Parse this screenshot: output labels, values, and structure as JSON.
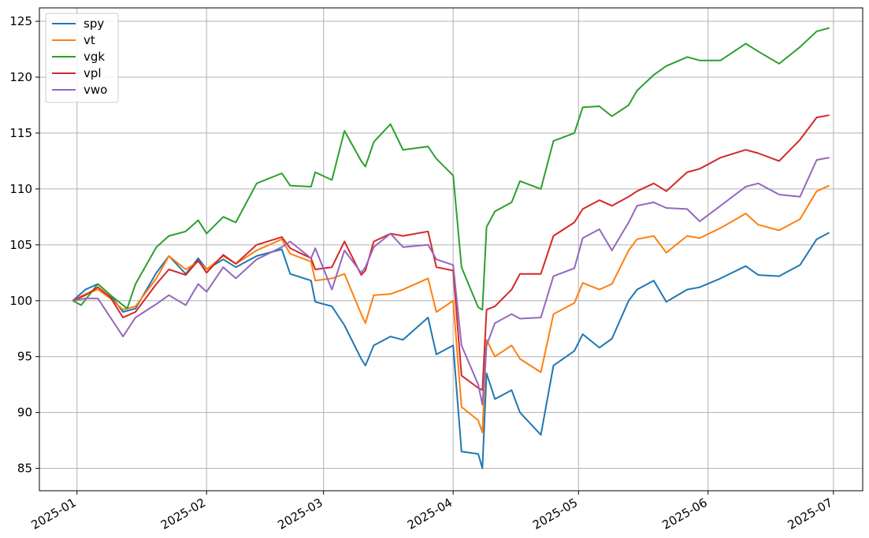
{
  "chart_data": {
    "type": "line",
    "title": "",
    "xlabel": "",
    "ylabel": "",
    "x_axis_type": "date",
    "xlim": [
      "2024-12-23",
      "2025-07-08"
    ],
    "ylim": [
      83.0,
      126.2
    ],
    "yticks": [
      85,
      90,
      95,
      100,
      105,
      110,
      115,
      120,
      125
    ],
    "xticks": [
      "2025-01",
      "2025-02",
      "2025-03",
      "2025-04",
      "2025-05",
      "2025-06",
      "2025-07"
    ],
    "xtick_dates": [
      "2025-01-01",
      "2025-02-01",
      "2025-03-01",
      "2025-04-01",
      "2025-05-01",
      "2025-06-01",
      "2025-07-01"
    ],
    "grid": true,
    "legend_position": "top-left",
    "series": [
      {
        "name": "spy",
        "color": "#1f77b4",
        "points": [
          [
            "2024-12-31",
            100.0
          ],
          [
            "2025-01-03",
            101.0
          ],
          [
            "2025-01-06",
            101.5
          ],
          [
            "2025-01-09",
            100.5
          ],
          [
            "2025-01-12",
            99.0
          ],
          [
            "2025-01-15",
            99.3
          ],
          [
            "2025-01-20",
            102.5
          ],
          [
            "2025-01-23",
            104.0
          ],
          [
            "2025-01-27",
            102.4
          ],
          [
            "2025-01-30",
            103.8
          ],
          [
            "2025-02-01",
            102.8
          ],
          [
            "2025-02-05",
            103.7
          ],
          [
            "2025-02-08",
            103.0
          ],
          [
            "2025-02-13",
            104.0
          ],
          [
            "2025-02-19",
            104.6
          ],
          [
            "2025-02-21",
            102.4
          ],
          [
            "2025-02-26",
            101.8
          ],
          [
            "2025-02-27",
            99.9
          ],
          [
            "2025-03-03",
            99.5
          ],
          [
            "2025-03-06",
            97.8
          ],
          [
            "2025-03-10",
            94.8
          ],
          [
            "2025-03-11",
            94.2
          ],
          [
            "2025-03-13",
            96.0
          ],
          [
            "2025-03-17",
            96.8
          ],
          [
            "2025-03-20",
            96.5
          ],
          [
            "2025-03-26",
            98.5
          ],
          [
            "2025-03-28",
            95.2
          ],
          [
            "2025-04-01",
            96.0
          ],
          [
            "2025-04-03",
            86.5
          ],
          [
            "2025-04-07",
            86.3
          ],
          [
            "2025-04-08",
            85.0
          ],
          [
            "2025-04-09",
            93.5
          ],
          [
            "2025-04-11",
            91.2
          ],
          [
            "2025-04-15",
            92.0
          ],
          [
            "2025-04-17",
            90.0
          ],
          [
            "2025-04-22",
            88.0
          ],
          [
            "2025-04-25",
            94.2
          ],
          [
            "2025-04-30",
            95.5
          ],
          [
            "2025-05-02",
            97.0
          ],
          [
            "2025-05-06",
            95.8
          ],
          [
            "2025-05-09",
            96.6
          ],
          [
            "2025-05-13",
            100.0
          ],
          [
            "2025-05-15",
            101.0
          ],
          [
            "2025-05-19",
            101.8
          ],
          [
            "2025-05-22",
            99.9
          ],
          [
            "2025-05-27",
            101.0
          ],
          [
            "2025-05-30",
            101.2
          ],
          [
            "2025-06-04",
            102.0
          ],
          [
            "2025-06-10",
            103.1
          ],
          [
            "2025-06-13",
            102.3
          ],
          [
            "2025-06-18",
            102.2
          ],
          [
            "2025-06-23",
            103.2
          ],
          [
            "2025-06-27",
            105.5
          ],
          [
            "2025-06-30",
            106.1
          ]
        ]
      },
      {
        "name": "vt",
        "color": "#ff7f0e",
        "points": [
          [
            "2024-12-31",
            100.0
          ],
          [
            "2025-01-03",
            100.6
          ],
          [
            "2025-01-06",
            101.0
          ],
          [
            "2025-01-09",
            100.2
          ],
          [
            "2025-01-12",
            99.2
          ],
          [
            "2025-01-15",
            99.5
          ],
          [
            "2025-01-20",
            102.0
          ],
          [
            "2025-01-23",
            104.0
          ],
          [
            "2025-01-27",
            102.8
          ],
          [
            "2025-01-30",
            103.5
          ],
          [
            "2025-02-01",
            102.8
          ],
          [
            "2025-02-05",
            104.0
          ],
          [
            "2025-02-08",
            103.3
          ],
          [
            "2025-02-13",
            104.5
          ],
          [
            "2025-02-19",
            105.5
          ],
          [
            "2025-02-21",
            104.2
          ],
          [
            "2025-02-26",
            103.5
          ],
          [
            "2025-02-27",
            101.8
          ],
          [
            "2025-03-03",
            102.0
          ],
          [
            "2025-03-06",
            102.4
          ],
          [
            "2025-03-10",
            98.8
          ],
          [
            "2025-03-11",
            98.0
          ],
          [
            "2025-03-13",
            100.5
          ],
          [
            "2025-03-17",
            100.6
          ],
          [
            "2025-03-20",
            101.0
          ],
          [
            "2025-03-26",
            102.0
          ],
          [
            "2025-03-28",
            99.0
          ],
          [
            "2025-04-01",
            100.0
          ],
          [
            "2025-04-03",
            90.5
          ],
          [
            "2025-04-07",
            89.3
          ],
          [
            "2025-04-08",
            88.2
          ],
          [
            "2025-04-09",
            96.5
          ],
          [
            "2025-04-11",
            95.0
          ],
          [
            "2025-04-15",
            96.0
          ],
          [
            "2025-04-17",
            94.8
          ],
          [
            "2025-04-22",
            93.6
          ],
          [
            "2025-04-25",
            98.8
          ],
          [
            "2025-04-30",
            99.8
          ],
          [
            "2025-05-02",
            101.6
          ],
          [
            "2025-05-06",
            101.0
          ],
          [
            "2025-05-09",
            101.5
          ],
          [
            "2025-05-13",
            104.5
          ],
          [
            "2025-05-15",
            105.5
          ],
          [
            "2025-05-19",
            105.8
          ],
          [
            "2025-05-22",
            104.3
          ],
          [
            "2025-05-27",
            105.8
          ],
          [
            "2025-05-30",
            105.6
          ],
          [
            "2025-06-04",
            106.5
          ],
          [
            "2025-06-10",
            107.8
          ],
          [
            "2025-06-13",
            106.8
          ],
          [
            "2025-06-18",
            106.3
          ],
          [
            "2025-06-23",
            107.3
          ],
          [
            "2025-06-27",
            109.8
          ],
          [
            "2025-06-30",
            110.3
          ]
        ]
      },
      {
        "name": "vgk",
        "color": "#2ca02c",
        "points": [
          [
            "2024-12-31",
            100.0
          ],
          [
            "2025-01-02",
            99.6
          ],
          [
            "2025-01-06",
            101.5
          ],
          [
            "2025-01-09",
            100.5
          ],
          [
            "2025-01-13",
            99.3
          ],
          [
            "2025-01-15",
            101.5
          ],
          [
            "2025-01-20",
            104.8
          ],
          [
            "2025-01-23",
            105.8
          ],
          [
            "2025-01-27",
            106.2
          ],
          [
            "2025-01-30",
            107.2
          ],
          [
            "2025-02-01",
            106.0
          ],
          [
            "2025-02-05",
            107.5
          ],
          [
            "2025-02-08",
            107.0
          ],
          [
            "2025-02-13",
            110.5
          ],
          [
            "2025-02-19",
            111.4
          ],
          [
            "2025-02-21",
            110.3
          ],
          [
            "2025-02-26",
            110.2
          ],
          [
            "2025-02-27",
            111.5
          ],
          [
            "2025-03-03",
            110.8
          ],
          [
            "2025-03-06",
            115.2
          ],
          [
            "2025-03-10",
            112.5
          ],
          [
            "2025-03-11",
            112.0
          ],
          [
            "2025-03-13",
            114.2
          ],
          [
            "2025-03-17",
            115.8
          ],
          [
            "2025-03-20",
            113.5
          ],
          [
            "2025-03-26",
            113.8
          ],
          [
            "2025-03-28",
            112.7
          ],
          [
            "2025-04-01",
            111.2
          ],
          [
            "2025-04-03",
            103.0
          ],
          [
            "2025-04-07",
            99.4
          ],
          [
            "2025-04-08",
            99.2
          ],
          [
            "2025-04-09",
            106.6
          ],
          [
            "2025-04-11",
            108.0
          ],
          [
            "2025-04-15",
            108.8
          ],
          [
            "2025-04-17",
            110.7
          ],
          [
            "2025-04-22",
            110.0
          ],
          [
            "2025-04-25",
            114.3
          ],
          [
            "2025-04-30",
            115.0
          ],
          [
            "2025-05-02",
            117.3
          ],
          [
            "2025-05-06",
            117.4
          ],
          [
            "2025-05-09",
            116.5
          ],
          [
            "2025-05-13",
            117.5
          ],
          [
            "2025-05-15",
            118.8
          ],
          [
            "2025-05-19",
            120.2
          ],
          [
            "2025-05-22",
            121.0
          ],
          [
            "2025-05-27",
            121.8
          ],
          [
            "2025-05-30",
            121.5
          ],
          [
            "2025-06-04",
            121.5
          ],
          [
            "2025-06-10",
            123.0
          ],
          [
            "2025-06-13",
            122.3
          ],
          [
            "2025-06-18",
            121.2
          ],
          [
            "2025-06-23",
            122.7
          ],
          [
            "2025-06-27",
            124.1
          ],
          [
            "2025-06-30",
            124.4
          ]
        ]
      },
      {
        "name": "vpl",
        "color": "#d62728",
        "points": [
          [
            "2024-12-31",
            100.0
          ],
          [
            "2025-01-03",
            100.5
          ],
          [
            "2025-01-06",
            101.2
          ],
          [
            "2025-01-09",
            100.3
          ],
          [
            "2025-01-12",
            98.5
          ],
          [
            "2025-01-15",
            99.0
          ],
          [
            "2025-01-20",
            101.5
          ],
          [
            "2025-01-23",
            102.8
          ],
          [
            "2025-01-27",
            102.3
          ],
          [
            "2025-01-30",
            103.6
          ],
          [
            "2025-02-01",
            102.5
          ],
          [
            "2025-02-05",
            104.1
          ],
          [
            "2025-02-08",
            103.3
          ],
          [
            "2025-02-13",
            105.0
          ],
          [
            "2025-02-19",
            105.7
          ],
          [
            "2025-02-21",
            104.7
          ],
          [
            "2025-02-26",
            103.8
          ],
          [
            "2025-02-27",
            102.8
          ],
          [
            "2025-03-03",
            103.0
          ],
          [
            "2025-03-06",
            105.3
          ],
          [
            "2025-03-10",
            102.3
          ],
          [
            "2025-03-11",
            102.7
          ],
          [
            "2025-03-13",
            105.3
          ],
          [
            "2025-03-17",
            106.0
          ],
          [
            "2025-03-20",
            105.8
          ],
          [
            "2025-03-26",
            106.2
          ],
          [
            "2025-03-28",
            103.0
          ],
          [
            "2025-04-01",
            102.7
          ],
          [
            "2025-04-03",
            93.3
          ],
          [
            "2025-04-07",
            92.2
          ],
          [
            "2025-04-08",
            92.0
          ],
          [
            "2025-04-09",
            99.2
          ],
          [
            "2025-04-11",
            99.5
          ],
          [
            "2025-04-15",
            101.0
          ],
          [
            "2025-04-17",
            102.4
          ],
          [
            "2025-04-22",
            102.4
          ],
          [
            "2025-04-25",
            105.8
          ],
          [
            "2025-04-30",
            107.0
          ],
          [
            "2025-05-02",
            108.2
          ],
          [
            "2025-05-06",
            109.0
          ],
          [
            "2025-05-09",
            108.5
          ],
          [
            "2025-05-13",
            109.3
          ],
          [
            "2025-05-15",
            109.8
          ],
          [
            "2025-05-19",
            110.5
          ],
          [
            "2025-05-22",
            109.8
          ],
          [
            "2025-05-27",
            111.5
          ],
          [
            "2025-05-30",
            111.8
          ],
          [
            "2025-06-04",
            112.8
          ],
          [
            "2025-06-10",
            113.5
          ],
          [
            "2025-06-13",
            113.2
          ],
          [
            "2025-06-18",
            112.5
          ],
          [
            "2025-06-23",
            114.4
          ],
          [
            "2025-06-27",
            116.4
          ],
          [
            "2025-06-30",
            116.6
          ]
        ]
      },
      {
        "name": "vwo",
        "color": "#9467bd",
        "points": [
          [
            "2024-12-31",
            100.0
          ],
          [
            "2025-01-03",
            100.2
          ],
          [
            "2025-01-06",
            100.2
          ],
          [
            "2025-01-09",
            98.5
          ],
          [
            "2025-01-12",
            96.8
          ],
          [
            "2025-01-15",
            98.5
          ],
          [
            "2025-01-20",
            99.7
          ],
          [
            "2025-01-23",
            100.5
          ],
          [
            "2025-01-27",
            99.6
          ],
          [
            "2025-01-30",
            101.5
          ],
          [
            "2025-02-01",
            100.8
          ],
          [
            "2025-02-05",
            103.0
          ],
          [
            "2025-02-08",
            102.0
          ],
          [
            "2025-02-13",
            103.7
          ],
          [
            "2025-02-19",
            104.8
          ],
          [
            "2025-02-21",
            105.3
          ],
          [
            "2025-02-26",
            103.8
          ],
          [
            "2025-02-27",
            104.7
          ],
          [
            "2025-03-03",
            101.0
          ],
          [
            "2025-03-06",
            104.5
          ],
          [
            "2025-03-10",
            102.5
          ],
          [
            "2025-03-11",
            103.0
          ],
          [
            "2025-03-13",
            104.8
          ],
          [
            "2025-03-17",
            106.0
          ],
          [
            "2025-03-20",
            104.8
          ],
          [
            "2025-03-26",
            105.0
          ],
          [
            "2025-03-28",
            103.7
          ],
          [
            "2025-04-01",
            103.2
          ],
          [
            "2025-04-03",
            96.0
          ],
          [
            "2025-04-07",
            92.5
          ],
          [
            "2025-04-08",
            90.7
          ],
          [
            "2025-04-09",
            96.0
          ],
          [
            "2025-04-11",
            98.0
          ],
          [
            "2025-04-15",
            98.8
          ],
          [
            "2025-04-17",
            98.4
          ],
          [
            "2025-04-22",
            98.5
          ],
          [
            "2025-04-25",
            102.2
          ],
          [
            "2025-04-30",
            102.9
          ],
          [
            "2025-05-02",
            105.6
          ],
          [
            "2025-05-06",
            106.4
          ],
          [
            "2025-05-09",
            104.5
          ],
          [
            "2025-05-13",
            107.0
          ],
          [
            "2025-05-15",
            108.5
          ],
          [
            "2025-05-19",
            108.8
          ],
          [
            "2025-05-22",
            108.3
          ],
          [
            "2025-05-27",
            108.2
          ],
          [
            "2025-05-30",
            107.1
          ],
          [
            "2025-06-04",
            108.5
          ],
          [
            "2025-06-10",
            110.2
          ],
          [
            "2025-06-13",
            110.5
          ],
          [
            "2025-06-18",
            109.5
          ],
          [
            "2025-06-23",
            109.3
          ],
          [
            "2025-06-27",
            112.6
          ],
          [
            "2025-06-30",
            112.8
          ]
        ]
      }
    ]
  }
}
